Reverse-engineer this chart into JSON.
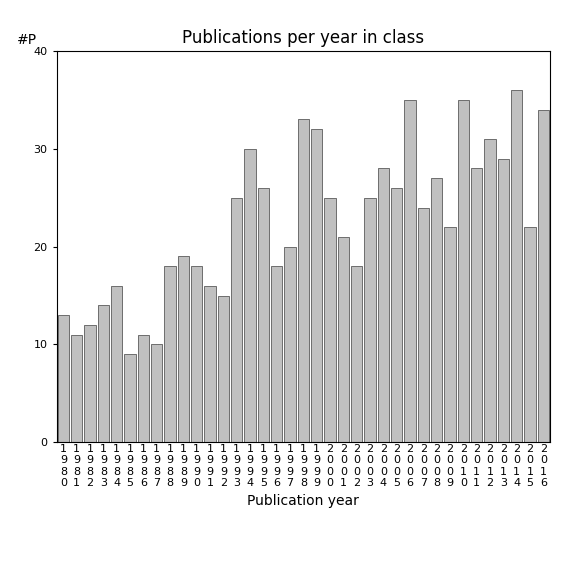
{
  "title": "Publications per year in class",
  "xlabel": "Publication year",
  "ylabel": "#P",
  "years": [
    1980,
    1981,
    1982,
    1983,
    1984,
    1985,
    1986,
    1987,
    1988,
    1989,
    1990,
    1991,
    1992,
    1993,
    1994,
    1995,
    1996,
    1997,
    1998,
    1999,
    2000,
    2001,
    2002,
    2003,
    2004,
    2005,
    2006,
    2007,
    2008,
    2009,
    2010,
    2011,
    2012,
    2013,
    2014,
    2015,
    2016
  ],
  "values": [
    13,
    11,
    12,
    14,
    16,
    9,
    11,
    10,
    18,
    19,
    18,
    16,
    15,
    25,
    30,
    26,
    18,
    20,
    33,
    32,
    25,
    21,
    18,
    25,
    28,
    26,
    35,
    24,
    27,
    22,
    35,
    28,
    31,
    29,
    36,
    22,
    34
  ],
  "bar_color": "#c0c0c0",
  "bar_edgecolor": "#404040",
  "ylim": [
    0,
    40
  ],
  "yticks": [
    0,
    10,
    20,
    30,
    40
  ],
  "background_color": "#ffffff",
  "title_fontsize": 12,
  "label_fontsize": 10,
  "tick_fontsize": 8
}
